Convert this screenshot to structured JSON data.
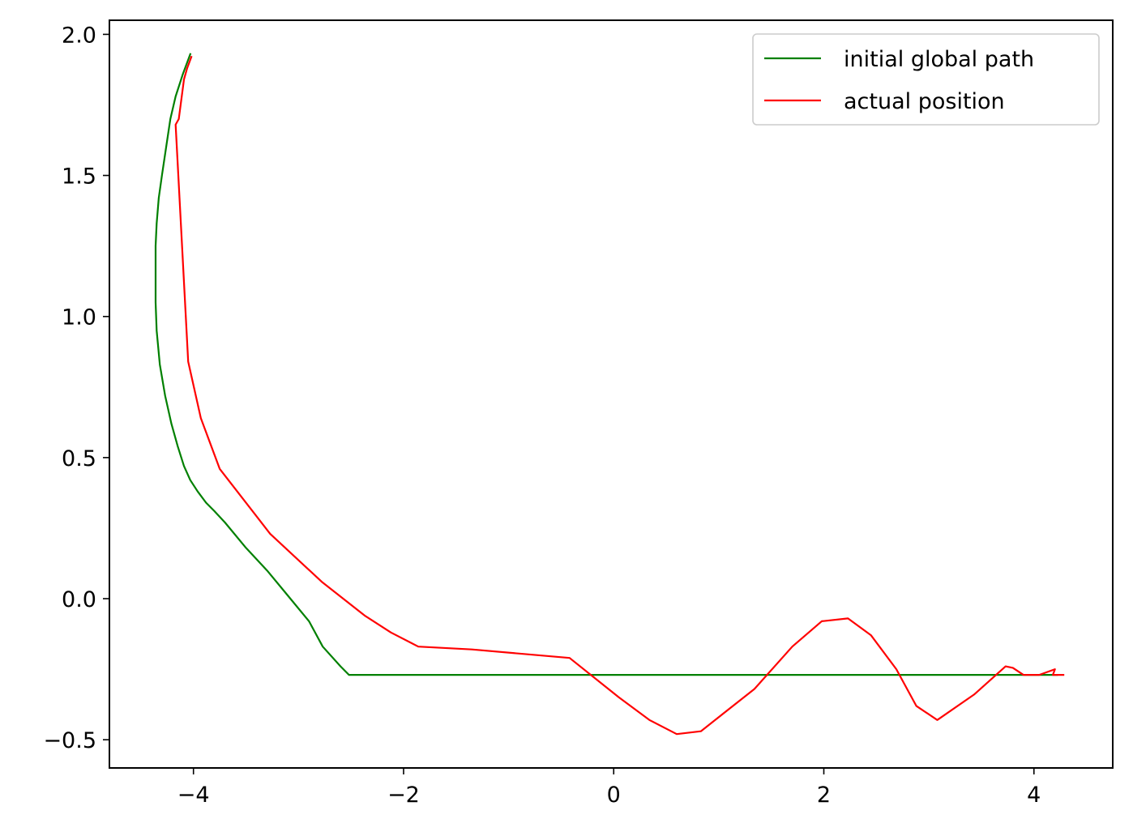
{
  "chart_data": {
    "type": "line",
    "title": "",
    "xlabel": "",
    "ylabel": "",
    "xlim": [
      -4.8,
      4.75
    ],
    "ylim": [
      -0.6,
      2.05
    ],
    "grid": false,
    "legend_position": "top-right",
    "x_ticks": [
      {
        "value": -4,
        "label": "−4"
      },
      {
        "value": -2,
        "label": "−2"
      },
      {
        "value": 0,
        "label": "0"
      },
      {
        "value": 2,
        "label": "2"
      },
      {
        "value": 4,
        "label": "4"
      }
    ],
    "y_ticks": [
      {
        "value": -0.5,
        "label": "−0.5"
      },
      {
        "value": 0.0,
        "label": "0.0"
      },
      {
        "value": 0.5,
        "label": "0.5"
      },
      {
        "value": 1.0,
        "label": "1.0"
      },
      {
        "value": 1.5,
        "label": "1.5"
      },
      {
        "value": 2.0,
        "label": "2.0"
      }
    ],
    "series": [
      {
        "name": "initial global path",
        "color": "#008000",
        "points": [
          [
            -4.03,
            1.93
          ],
          [
            -4.1,
            1.86
          ],
          [
            -4.17,
            1.78
          ],
          [
            -4.22,
            1.7
          ],
          [
            -4.26,
            1.6
          ],
          [
            -4.3,
            1.5
          ],
          [
            -4.33,
            1.42
          ],
          [
            -4.35,
            1.33
          ],
          [
            -4.36,
            1.25
          ],
          [
            -4.36,
            1.15
          ],
          [
            -4.36,
            1.05
          ],
          [
            -4.35,
            0.95
          ],
          [
            -4.32,
            0.83
          ],
          [
            -4.27,
            0.72
          ],
          [
            -4.21,
            0.62
          ],
          [
            -4.15,
            0.54
          ],
          [
            -4.09,
            0.47
          ],
          [
            -4.03,
            0.42
          ],
          [
            -3.96,
            0.38
          ],
          [
            -3.88,
            0.34
          ],
          [
            -3.8,
            0.31
          ],
          [
            -3.7,
            0.27
          ],
          [
            -3.5,
            0.18
          ],
          [
            -3.3,
            0.1
          ],
          [
            -3.1,
            0.01
          ],
          [
            -2.9,
            -0.08
          ],
          [
            -2.77,
            -0.17
          ],
          [
            -2.6,
            -0.24
          ],
          [
            -2.52,
            -0.27
          ],
          [
            -2.45,
            -0.27
          ],
          [
            -2.0,
            -0.27
          ],
          [
            -1.0,
            -0.27
          ],
          [
            0.0,
            -0.27
          ],
          [
            1.0,
            -0.27
          ],
          [
            2.0,
            -0.27
          ],
          [
            3.0,
            -0.27
          ],
          [
            4.0,
            -0.27
          ],
          [
            4.22,
            -0.27
          ]
        ]
      },
      {
        "name": "actual position",
        "color": "#ff0000",
        "points": [
          [
            -4.02,
            1.92
          ],
          [
            -4.06,
            1.88
          ],
          [
            -4.09,
            1.84
          ],
          [
            -4.14,
            1.7
          ],
          [
            -4.17,
            1.68
          ],
          [
            -4.05,
            0.84
          ],
          [
            -3.93,
            0.64
          ],
          [
            -3.75,
            0.46
          ],
          [
            -3.27,
            0.23
          ],
          [
            -2.78,
            0.06
          ],
          [
            -2.37,
            -0.06
          ],
          [
            -2.12,
            -0.12
          ],
          [
            -1.86,
            -0.17
          ],
          [
            -1.35,
            -0.18
          ],
          [
            -0.42,
            -0.21
          ],
          [
            0.05,
            -0.35
          ],
          [
            0.34,
            -0.43
          ],
          [
            0.6,
            -0.48
          ],
          [
            0.83,
            -0.47
          ],
          [
            1.34,
            -0.32
          ],
          [
            1.7,
            -0.17
          ],
          [
            1.98,
            -0.08
          ],
          [
            2.23,
            -0.07
          ],
          [
            2.45,
            -0.13
          ],
          [
            2.69,
            -0.25
          ],
          [
            2.88,
            -0.38
          ],
          [
            3.08,
            -0.43
          ],
          [
            3.43,
            -0.34
          ],
          [
            3.73,
            -0.24
          ],
          [
            3.8,
            -0.245
          ],
          [
            3.9,
            -0.27
          ],
          [
            4.05,
            -0.27
          ],
          [
            4.2,
            -0.25
          ],
          [
            4.18,
            -0.27
          ],
          [
            4.27,
            -0.27
          ],
          [
            4.28,
            -0.27
          ]
        ]
      }
    ]
  }
}
